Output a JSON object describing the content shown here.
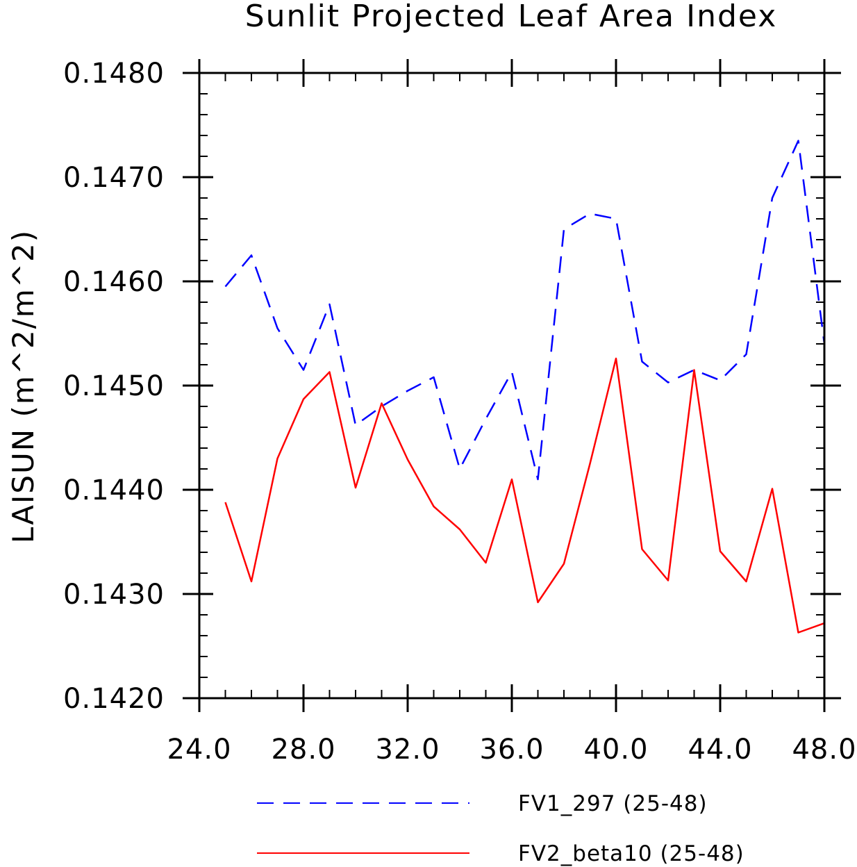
{
  "chart_data": {
    "type": "line",
    "title": "Sunlit Projected Leaf Area Index",
    "xlabel": "",
    "ylabel": "LAISUN  (m^2/m^2)",
    "xlim": [
      24.0,
      48.0
    ],
    "ylim": [
      0.142,
      0.148
    ],
    "x_ticks": [
      "24.0",
      "28.0",
      "32.0",
      "36.0",
      "40.0",
      "44.0",
      "48.0"
    ],
    "y_ticks": [
      "0.1420",
      "0.1430",
      "0.1440",
      "0.1450",
      "0.1460",
      "0.1470",
      "0.1480"
    ],
    "grid": false,
    "legend_position": "bottom",
    "x": [
      25,
      26,
      27,
      28,
      29,
      30,
      31,
      32,
      33,
      34,
      35,
      36,
      37,
      38,
      39,
      40,
      41,
      42,
      43,
      44,
      45,
      46,
      47,
      48
    ],
    "series": [
      {
        "name": "FV1_297 (25-48)",
        "color": "#0000ff",
        "style": "dashed",
        "values": [
          0.14595,
          0.14625,
          0.14555,
          0.14515,
          0.14578,
          0.14462,
          0.1448,
          0.14495,
          0.14508,
          0.1442,
          0.14468,
          0.14513,
          0.1441,
          0.1465,
          0.14665,
          0.1466,
          0.14523,
          0.14503,
          0.14515,
          0.14505,
          0.1453,
          0.1468,
          0.14735,
          0.1454
        ]
      },
      {
        "name": "FV2_beta10 (25-48)",
        "color": "#ff0000",
        "style": "solid",
        "values": [
          0.14388,
          0.14312,
          0.1443,
          0.14487,
          0.14513,
          0.14402,
          0.14483,
          0.14429,
          0.14384,
          0.14362,
          0.1433,
          0.1441,
          0.14292,
          0.14329,
          0.14425,
          0.14526,
          0.14343,
          0.14313,
          0.14515,
          0.14341,
          0.14312,
          0.14401,
          0.14263,
          0.14272
        ]
      }
    ]
  }
}
